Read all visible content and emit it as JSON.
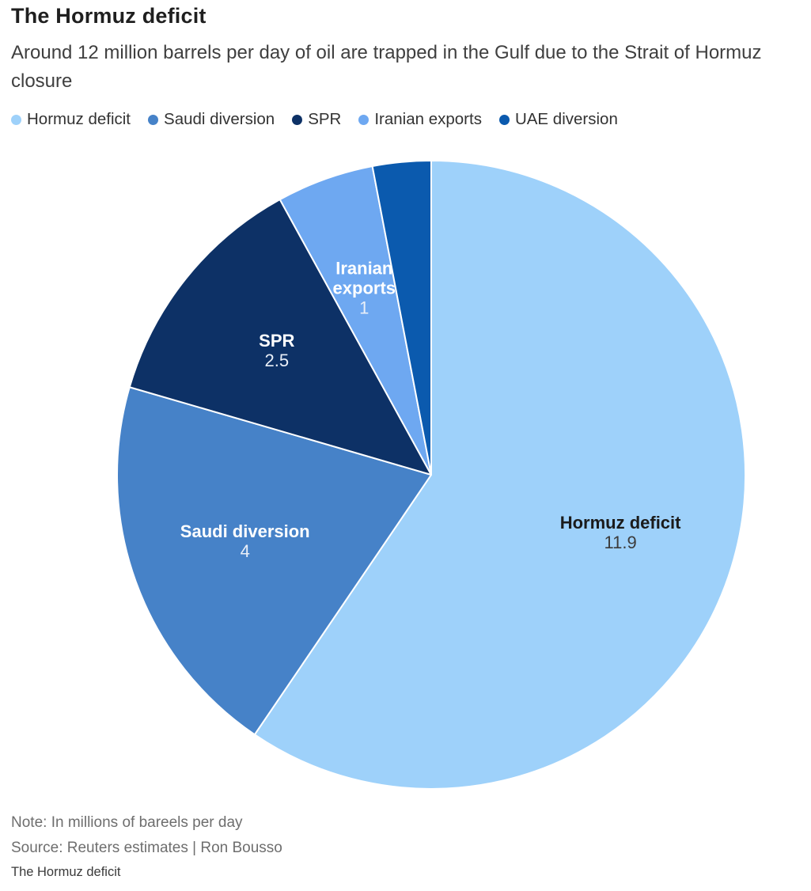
{
  "header": {
    "title": "The Hormuz deficit",
    "subtitle": "Around 12 million barrels per day of oil are trapped in the Gulf due to the Strait of Hormuz closure"
  },
  "legend": [
    {
      "label": "Hormuz deficit",
      "color": "#9ed1fa"
    },
    {
      "label": "Saudi diversion",
      "color": "#4682c8"
    },
    {
      "label": "SPR",
      "color": "#0d3166"
    },
    {
      "label": "Iranian exports",
      "color": "#6ea8f1"
    },
    {
      "label": "UAE diversion",
      "color": "#0b5aae"
    }
  ],
  "chart_data": {
    "type": "pie",
    "title": "The Hormuz deficit",
    "subtitle": "Around 12 million barrels per day of oil are trapped in the Gulf due to the Strait of Hormuz closure",
    "units": "millions of barrels per day",
    "legend_position": "top",
    "start_angle_deg": 0,
    "direction": "clockwise",
    "total": 20,
    "slices": [
      {
        "label": "Hormuz deficit",
        "value": 11.9,
        "value_text": "11.9",
        "color": "#9ed1fa",
        "show_label": true,
        "label_lines": [
          "Hormuz deficit"
        ],
        "label_color": "#1b1b1b",
        "value_color": "#3c3c3c"
      },
      {
        "label": "Saudi diversion",
        "value": 4,
        "value_text": "4",
        "color": "#4682c8",
        "show_label": true,
        "label_lines": [
          "Saudi diversion"
        ],
        "label_color": "#ffffff",
        "value_color": "#e9eff8"
      },
      {
        "label": "SPR",
        "value": 2.5,
        "value_text": "2.5",
        "color": "#0d3166",
        "show_label": true,
        "label_lines": [
          "SPR"
        ],
        "label_color": "#ffffff",
        "value_color": "#e9eff8"
      },
      {
        "label": "Iranian exports",
        "value": 1,
        "value_text": "1",
        "color": "#6ea8f1",
        "show_label": true,
        "label_lines": [
          "Iranian",
          "exports"
        ],
        "label_color": "#ffffff",
        "value_color": "#e9eff8"
      },
      {
        "label": "UAE diversion",
        "value": 0.6,
        "value_text": "0.6",
        "color": "#0b5aae",
        "show_label": false,
        "label_lines": [
          "UAE diversion"
        ],
        "label_color": "#ffffff",
        "value_color": "#e9eff8"
      }
    ]
  },
  "footer": {
    "note": "Note: In millions of bareels per day",
    "source": "Source: Reuters estimates | Ron Bousso",
    "caption": "The Hormuz deficit"
  }
}
